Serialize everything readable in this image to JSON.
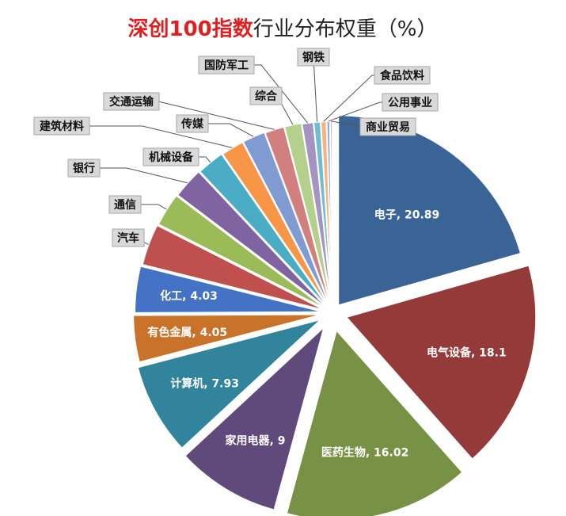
{
  "chart_data": {
    "type": "pie",
    "title_accent": "深创100指数",
    "title_rest": "行业分布权重（%）",
    "slices": [
      {
        "name": "电子",
        "value": 20.89,
        "color": "#3a6496",
        "label": "电子, 20.89"
      },
      {
        "name": "电气设备",
        "value": 18.1,
        "color": "#943b3a",
        "label": "电气设备, 18.1"
      },
      {
        "name": "医药生物",
        "value": 16.02,
        "color": "#779244",
        "label": "医药生物, 16.02"
      },
      {
        "name": "家用电器",
        "value": 9,
        "color": "#5f4a7b",
        "label": "家用电器, 9"
      },
      {
        "name": "计算机",
        "value": 7.93,
        "color": "#31849b",
        "label": "计算机, 7.93"
      },
      {
        "name": "有色金属",
        "value": 4.05,
        "color": "#c9722a",
        "label": "有色金属, 4.05"
      },
      {
        "name": "化工",
        "value": 4.03,
        "color": "#4472c4",
        "label": "化工, 4.03"
      },
      {
        "name": "汽车",
        "value": 3.6,
        "color": "#c0504d",
        "label": "汽车"
      },
      {
        "name": "通信",
        "value": 2.9,
        "color": "#9bbb59",
        "label": "通信"
      },
      {
        "name": "银行",
        "value": 2.7,
        "color": "#8064a2",
        "label": "银行"
      },
      {
        "name": "机械设备",
        "value": 2.4,
        "color": "#4bacc6",
        "label": "机械设备"
      },
      {
        "name": "建筑材料",
        "value": 2.0,
        "color": "#f79646",
        "label": "建筑材料"
      },
      {
        "name": "传媒",
        "value": 2.0,
        "color": "#7f9bd2",
        "label": "传媒"
      },
      {
        "name": "交通运输",
        "value": 1.7,
        "color": "#d27f7f",
        "label": "交通运输"
      },
      {
        "name": "综合",
        "value": 1.5,
        "color": "#b5d08c",
        "label": "综合"
      },
      {
        "name": "国防军工",
        "value": 1.0,
        "color": "#a593c2",
        "label": "国防军工"
      },
      {
        "name": "钢铁",
        "value": 0.6,
        "color": "#6fbdd2",
        "label": "钢铁"
      },
      {
        "name": "食品饮料",
        "value": 0.5,
        "color": "#f9b27a",
        "label": "食品饮料"
      },
      {
        "name": "公用事业",
        "value": 0.3,
        "color": "#93a9d8",
        "label": "公用事业"
      },
      {
        "name": "商业贸易",
        "value": 0.2,
        "color": "#e3a0a0",
        "label": "商业贸易"
      }
    ]
  }
}
